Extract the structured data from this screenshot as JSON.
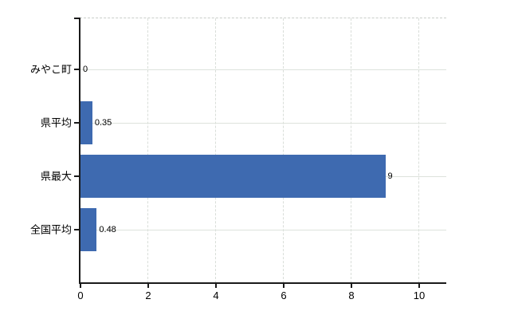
{
  "chart_data": {
    "type": "bar",
    "orientation": "horizontal",
    "title": "",
    "xlabel": "",
    "ylabel": "",
    "categories": [
      "みやこ町",
      "県平均",
      "県最大",
      "全国平均"
    ],
    "values": [
      0,
      0.35,
      9,
      0.48
    ],
    "value_labels": [
      "0",
      "0.35",
      "9",
      "0.48"
    ],
    "x_ticks": [
      0,
      2,
      4,
      6,
      8,
      10
    ],
    "xlim": [
      0,
      10.8
    ],
    "grid": true,
    "legend": false,
    "bar_color": "#3e6ab0",
    "gridline_color": "#dde2dc",
    "grid_dashed_color": "#d9ded9",
    "axis_color": "#1a1a1a",
    "text_color": "#000000",
    "background_color": "#ffffff"
  }
}
